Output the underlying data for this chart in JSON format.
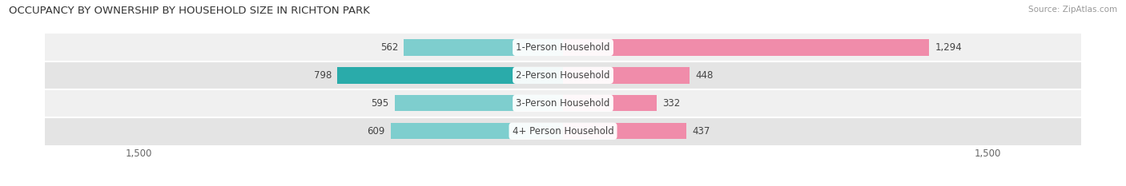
{
  "title": "OCCUPANCY BY OWNERSHIP BY HOUSEHOLD SIZE IN RICHTON PARK",
  "source": "Source: ZipAtlas.com",
  "categories": [
    "1-Person Household",
    "2-Person Household",
    "3-Person Household",
    "4+ Person Household"
  ],
  "owner_values": [
    562,
    798,
    595,
    609
  ],
  "renter_values": [
    1294,
    448,
    332,
    437
  ],
  "renter_labels": [
    "1,294",
    "448",
    "332",
    "437"
  ],
  "owner_colors": [
    "#7ecece",
    "#2aabaa",
    "#7ecece",
    "#7ecece"
  ],
  "renter_color": "#f08caa",
  "row_bg_colors": [
    "#f0f0f0",
    "#e4e4e4"
  ],
  "axis_max": 1500,
  "label_fontsize": 8.5,
  "title_fontsize": 9.5,
  "source_fontsize": 7.5,
  "legend_fontsize": 8.5,
  "bar_height": 0.58,
  "figsize": [
    14.06,
    2.33
  ],
  "dpi": 100,
  "owner_legend_color": "#2aabaa",
  "renter_legend_color": "#f08caa"
}
